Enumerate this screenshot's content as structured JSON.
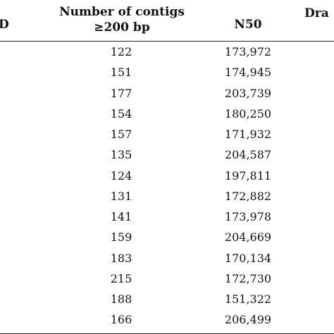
{
  "table": {
    "headers": {
      "id": "D",
      "contigs_line1": "Number of contigs",
      "contigs_line2": "≥200 bp",
      "n50": "N50",
      "draft": "Dra"
    },
    "rows": [
      {
        "id": "",
        "contigs": "122",
        "n50": "173,972"
      },
      {
        "id": "",
        "contigs": "151",
        "n50": "174,945"
      },
      {
        "id": "",
        "contigs": "177",
        "n50": "203,739"
      },
      {
        "id": "",
        "contigs": "154",
        "n50": "180,250"
      },
      {
        "id": "",
        "contigs": "157",
        "n50": "171,932"
      },
      {
        "id": "",
        "contigs": "135",
        "n50": "204,587"
      },
      {
        "id": "",
        "contigs": "124",
        "n50": "197,811"
      },
      {
        "id": "",
        "contigs": "131",
        "n50": "172,882"
      },
      {
        "id": "",
        "contigs": "141",
        "n50": "173,978"
      },
      {
        "id": "",
        "contigs": "159",
        "n50": "204,669"
      },
      {
        "id": "",
        "contigs": "183",
        "n50": "170,134"
      },
      {
        "id": "",
        "contigs": "215",
        "n50": "172,730"
      },
      {
        "id": "",
        "contigs": "188",
        "n50": "151,322"
      },
      {
        "id": "",
        "contigs": "166",
        "n50": "206,499"
      }
    ]
  }
}
